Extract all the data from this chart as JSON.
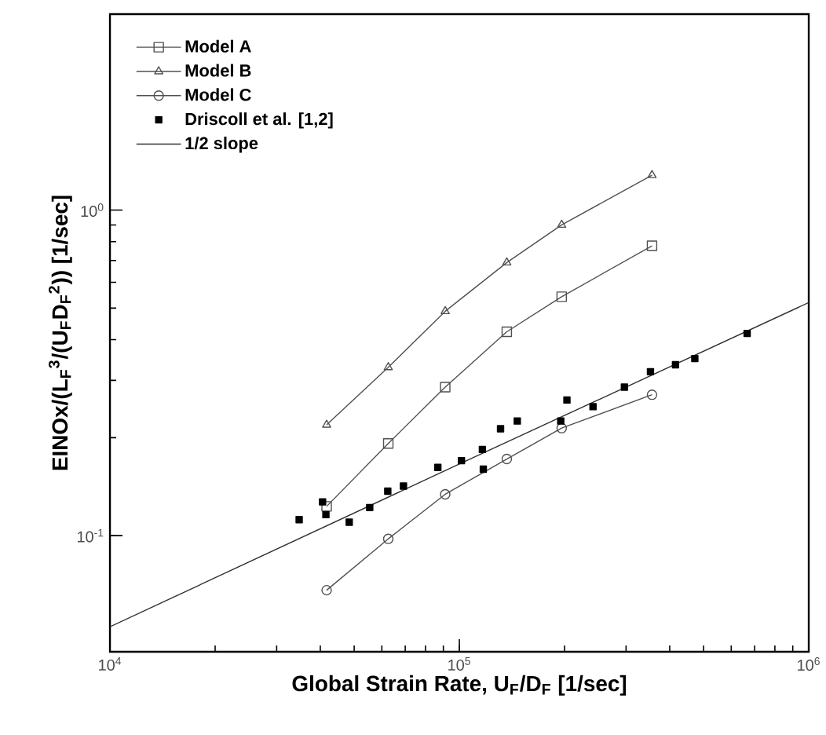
{
  "chart_data": {
    "type": "line",
    "xlabel": "Global Strain Rate, U$_{F}$/D$_{F}$ [1/sec]",
    "ylabel": "EINOx/(L$_{F}$$^{3}$/(U$_{F}$D$_{F}$$^{2}$))  [1/sec]",
    "log": "xy",
    "xlim": [
      10000,
      1000000
    ],
    "ylim": [
      0.044,
      4
    ],
    "xticks": [
      {
        "value": 10000,
        "label": "10$^{4}$"
      },
      {
        "value": 100000,
        "label": "10$^{5}$"
      },
      {
        "value": 1000000,
        "label": "10$^{6}$"
      }
    ],
    "yticks": [
      {
        "value": 0.1,
        "label": "10$^{-1}$"
      },
      {
        "value": 1,
        "label": "10$^{0}$"
      }
    ],
    "legend": "top left",
    "grid": false,
    "series": [
      {
        "name": "Model A",
        "marker": "square",
        "color": "#505050",
        "x": [
          41700,
          62600,
          91100,
          136700,
          196300,
          356000
        ],
        "values": [
          0.123,
          0.192,
          0.286,
          0.423,
          0.542,
          0.777
        ]
      },
      {
        "name": "Model B",
        "marker": "triangle",
        "color": "#505050",
        "x": [
          41700,
          62600,
          91100,
          136700,
          196300,
          356000
        ],
        "values": [
          0.219,
          0.329,
          0.489,
          0.69,
          0.901,
          1.28
        ]
      },
      {
        "name": "Model C",
        "marker": "circle",
        "color": "#505050",
        "x": [
          41700,
          62600,
          91100,
          136700,
          196300,
          356000
        ],
        "values": [
          0.068,
          0.0978,
          0.134,
          0.172,
          0.214,
          0.271
        ]
      },
      {
        "name": "Driscoll et al. [1,2]",
        "type": "scatter",
        "marker": "square",
        "color": "#000000",
        "x": [
          34800,
          40600,
          41500,
          48400,
          55400,
          62400,
          69200,
          86800,
          101400,
          116400,
          117100,
          131200,
          146500,
          195100,
          203200,
          241300,
          296800,
          352400,
          415600,
          472000,
          666400
        ],
        "values": [
          0.112,
          0.127,
          0.116,
          0.11,
          0.122,
          0.137,
          0.142,
          0.162,
          0.17,
          0.184,
          0.16,
          0.213,
          0.225,
          0.225,
          0.261,
          0.249,
          0.286,
          0.319,
          0.335,
          0.35,
          0.418
        ]
      },
      {
        "name": "1/2 slope",
        "marker": "none",
        "color": "#303030",
        "x": [
          10000,
          100000,
          1000000
        ],
        "values": [
          0.0525,
          0.166,
          0.52
        ]
      }
    ]
  }
}
